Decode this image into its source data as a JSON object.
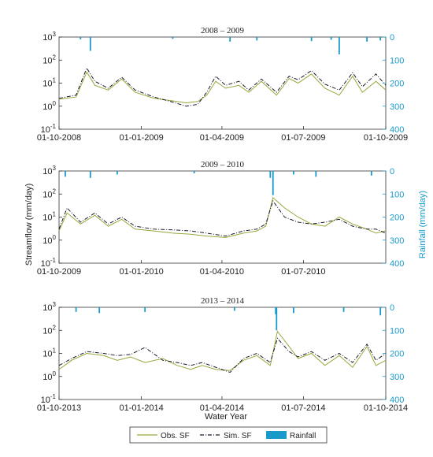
{
  "figure": {
    "y_left_label": "Streamflow (mm/day)",
    "y_right_label": "Rainfall (mm/day)",
    "x_label": "Water Year",
    "colors": {
      "obs": "#9aa63a",
      "sim": "#1a1a2e",
      "rain": "#1a9acb",
      "axis": "#333333"
    }
  },
  "legend": {
    "location": "bottom-center",
    "items": [
      {
        "label": "Obs. SF",
        "style": "solid-line",
        "color": "#9aa63a"
      },
      {
        "label": "Sim. SF",
        "style": "dash-dot-line",
        "color": "#1a1a2e"
      },
      {
        "label": "Rainfall",
        "style": "bar",
        "color": "#1a9acb"
      }
    ]
  },
  "chart_data": [
    {
      "type": "line",
      "title": "2008 – 2009",
      "x_range": [
        "2008-10-01",
        "2009-10-01"
      ],
      "x_ticks": [
        "01-10-2008",
        "01-01-2009",
        "01-04-2009",
        "01-07-2009",
        "01-10-2009"
      ],
      "y_scale": "log",
      "ylim": [
        0.1,
        1000
      ],
      "y_ticks": [
        "10^{-1}",
        "10^{0}",
        "10^{1}",
        "10^{2}",
        "10^{3}"
      ],
      "y2_reversed": true,
      "y2lim": [
        0,
        400
      ],
      "y2_ticks": [
        "0",
        "100",
        "200",
        "300",
        "400"
      ],
      "series": [
        {
          "name": "Obs. SF",
          "x": [
            "2008-10-01",
            "2008-10-20",
            "2008-11-01",
            "2008-11-10",
            "2008-11-25",
            "2008-12-10",
            "2008-12-25",
            "2009-01-15",
            "2009-02-05",
            "2009-02-20",
            "2009-03-05",
            "2009-03-15",
            "2009-03-25",
            "2009-04-05",
            "2009-04-20",
            "2009-05-01",
            "2009-05-15",
            "2009-06-01",
            "2009-06-15",
            "2009-06-25",
            "2009-07-10",
            "2009-07-25",
            "2009-08-10",
            "2009-08-25",
            "2009-09-05",
            "2009-09-20",
            "2009-10-01"
          ],
          "y": [
            2.0,
            2.5,
            30,
            8,
            5,
            15,
            4,
            2.2,
            1.7,
            1.4,
            1.6,
            3,
            12,
            6,
            8,
            4,
            12,
            3,
            16,
            10,
            25,
            6,
            3,
            20,
            4,
            12,
            5
          ]
        },
        {
          "name": "Sim. SF",
          "x": [
            "2008-10-01",
            "2008-10-20",
            "2008-11-01",
            "2008-11-10",
            "2008-11-25",
            "2008-12-10",
            "2008-12-25",
            "2009-01-15",
            "2009-02-05",
            "2009-02-20",
            "2009-03-05",
            "2009-03-15",
            "2009-03-25",
            "2009-04-05",
            "2009-04-20",
            "2009-05-01",
            "2009-05-15",
            "2009-06-01",
            "2009-06-15",
            "2009-06-25",
            "2009-07-10",
            "2009-07-25",
            "2009-08-10",
            "2009-08-25",
            "2009-09-05",
            "2009-09-20",
            "2009-10-01"
          ],
          "y": [
            2.2,
            3.0,
            45,
            12,
            6,
            18,
            5,
            2.5,
            1.5,
            1.0,
            1.2,
            4,
            20,
            8,
            12,
            5,
            15,
            4,
            20,
            14,
            35,
            9,
            5,
            28,
            7,
            25,
            8
          ]
        },
        {
          "name": "Rainfall",
          "x": [
            "2008-10-25",
            "2008-11-05",
            "2009-02-05",
            "2009-04-10",
            "2009-05-10",
            "2009-07-10",
            "2009-08-01",
            "2009-08-10",
            "2009-09-10",
            "2009-09-25"
          ],
          "y": [
            10,
            60,
            8,
            20,
            15,
            18,
            12,
            75,
            20,
            15
          ]
        }
      ]
    },
    {
      "type": "line",
      "title": "2009 – 2010",
      "x_range": [
        "2009-10-01",
        "2010-10-01"
      ],
      "x_ticks": [
        "01-10-2009",
        "01-01-2010",
        "01-04-2010",
        "01-07-2010"
      ],
      "y_scale": "log",
      "ylim": [
        0.1,
        1000
      ],
      "y_ticks": [
        "10^{-1}",
        "10^{0}",
        "10^{1}",
        "10^{2}",
        "10^{3}"
      ],
      "y2_reversed": true,
      "y2lim": [
        0,
        400
      ],
      "y2_ticks": [
        "0",
        "100",
        "200",
        "300",
        "400"
      ],
      "series": [
        {
          "name": "Obs. SF",
          "x": [
            "2009-10-01",
            "2009-10-10",
            "2009-10-25",
            "2009-11-10",
            "2009-11-25",
            "2009-12-10",
            "2009-12-25",
            "2010-01-15",
            "2010-02-05",
            "2010-02-25",
            "2010-03-15",
            "2010-04-05",
            "2010-04-25",
            "2010-05-10",
            "2010-05-20",
            "2010-05-28",
            "2010-06-10",
            "2010-06-25",
            "2010-07-10",
            "2010-07-25",
            "2010-08-10",
            "2010-08-25",
            "2010-09-10",
            "2010-09-20",
            "2010-10-01"
          ],
          "y": [
            2.5,
            15,
            5,
            12,
            4,
            8,
            3,
            2.5,
            2.0,
            1.8,
            1.5,
            1.3,
            2,
            2.5,
            4,
            70,
            25,
            10,
            5,
            4,
            10,
            5,
            3,
            2,
            2.5
          ]
        },
        {
          "name": "Sim. SF",
          "x": [
            "2009-10-01",
            "2009-10-10",
            "2009-10-25",
            "2009-11-10",
            "2009-11-25",
            "2009-12-10",
            "2009-12-25",
            "2010-01-15",
            "2010-02-05",
            "2010-02-25",
            "2010-03-15",
            "2010-04-05",
            "2010-04-25",
            "2010-05-10",
            "2010-05-20",
            "2010-05-28",
            "2010-06-10",
            "2010-06-25",
            "2010-07-10",
            "2010-07-25",
            "2010-08-10",
            "2010-08-25",
            "2010-09-10",
            "2010-09-20",
            "2010-10-01"
          ],
          "y": [
            3,
            25,
            6,
            15,
            5,
            10,
            4,
            3,
            2.8,
            2.5,
            2.0,
            1.5,
            2.5,
            3,
            5,
            50,
            10,
            6,
            5,
            6,
            8,
            4,
            3,
            3,
            2
          ]
        },
        {
          "name": "Rainfall",
          "x": [
            "2009-10-08",
            "2009-11-05",
            "2009-12-05",
            "2010-03-01",
            "2010-05-25",
            "2010-05-28",
            "2010-06-20",
            "2010-07-15",
            "2010-09-15"
          ],
          "y": [
            25,
            30,
            15,
            10,
            30,
            105,
            15,
            25,
            20
          ]
        }
      ]
    },
    {
      "type": "line",
      "title": "2013 – 2014",
      "x_range": [
        "2013-10-01",
        "2014-10-01"
      ],
      "x_ticks": [
        "01-10-2013",
        "01-01-2014",
        "01-04-2014",
        "01-07-2014",
        "01-10-2014"
      ],
      "y_scale": "log",
      "ylim": [
        0.1,
        1000
      ],
      "y_ticks": [
        "10^{-1}",
        "10^{0}",
        "10^{1}",
        "10^{2}",
        "10^{3}"
      ],
      "y2_reversed": true,
      "y2lim": [
        0,
        400
      ],
      "y2_ticks": [
        "0",
        "100",
        "200",
        "300",
        "400"
      ],
      "series": [
        {
          "name": "Obs. SF",
          "x": [
            "2013-10-01",
            "2013-10-15",
            "2013-11-01",
            "2013-11-20",
            "2013-12-05",
            "2013-12-20",
            "2014-01-05",
            "2014-01-25",
            "2014-02-10",
            "2014-02-25",
            "2014-03-10",
            "2014-03-25",
            "2014-04-10",
            "2014-04-25",
            "2014-05-10",
            "2014-05-25",
            "2014-06-02",
            "2014-06-15",
            "2014-06-25",
            "2014-07-10",
            "2014-07-25",
            "2014-08-10",
            "2014-08-25",
            "2014-09-10",
            "2014-09-20",
            "2014-10-01"
          ],
          "y": [
            2.0,
            5,
            10,
            8,
            5,
            7,
            4,
            6,
            3,
            2,
            3,
            2,
            1.8,
            5,
            8,
            3,
            90,
            20,
            6,
            10,
            3,
            8,
            2.5,
            20,
            3,
            5
          ]
        },
        {
          "name": "Sim. SF",
          "x": [
            "2013-10-01",
            "2013-10-15",
            "2013-11-01",
            "2013-11-20",
            "2013-12-05",
            "2013-12-20",
            "2014-01-05",
            "2014-01-25",
            "2014-02-10",
            "2014-02-25",
            "2014-03-10",
            "2014-03-25",
            "2014-04-10",
            "2014-04-25",
            "2014-05-10",
            "2014-05-25",
            "2014-06-02",
            "2014-06-15",
            "2014-06-25",
            "2014-07-10",
            "2014-07-25",
            "2014-08-10",
            "2014-08-25",
            "2014-09-10",
            "2014-09-20",
            "2014-10-01"
          ],
          "y": [
            3,
            6,
            12,
            10,
            8,
            9,
            18,
            5,
            4,
            3,
            4,
            2.5,
            1.5,
            6,
            10,
            4,
            45,
            12,
            7,
            12,
            5,
            10,
            4,
            25,
            5,
            10
          ]
        },
        {
          "name": "Rainfall",
          "x": [
            "2013-10-20",
            "2013-11-15",
            "2014-01-05",
            "2014-04-15",
            "2014-05-31",
            "2014-06-01",
            "2014-06-20",
            "2014-08-15",
            "2014-09-25"
          ],
          "y": [
            20,
            25,
            20,
            15,
            30,
            100,
            25,
            20,
            35
          ]
        }
      ]
    }
  ]
}
